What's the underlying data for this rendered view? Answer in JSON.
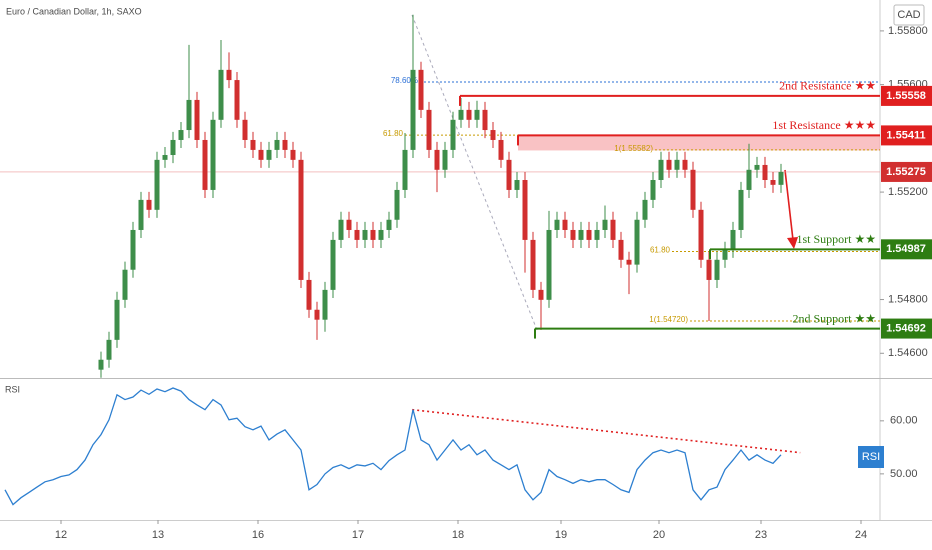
{
  "chart_data": [
    {
      "type": "candlestick",
      "title": "Euro / Canadian Dollar, 1h, SAXO",
      "currency": "CAD",
      "up_color": "#3e8e4a",
      "down_color": "#d12f2f",
      "open": [
        1.54539,
        1.54576,
        1.5465,
        1.54799,
        1.54911,
        1.55059,
        1.55171,
        1.55134,
        1.5532,
        1.55338,
        1.55394,
        1.55431,
        1.55543,
        1.55394,
        1.55208,
        1.55469,
        1.55655,
        1.55617,
        1.55469,
        1.55394,
        1.55357,
        1.5532,
        1.55357,
        1.55394,
        1.55357,
        1.5532,
        1.54873,
        1.54762,
        1.54725,
        1.54836,
        1.55022,
        1.55097,
        1.55059,
        1.55022,
        1.55059,
        1.55022,
        1.55059,
        1.55097,
        1.55208,
        1.55357,
        1.55655,
        1.55506,
        1.55357,
        1.55283,
        1.55357,
        1.55469,
        1.55506,
        1.55469,
        1.55506,
        1.55431,
        1.55394,
        1.5532,
        1.55208,
        1.55245,
        1.55022,
        1.54836,
        1.54799,
        1.55059,
        1.55097,
        1.55059,
        1.55022,
        1.55059,
        1.55022,
        1.55059,
        1.55097,
        1.55022,
        1.54948,
        1.5493,
        1.55097,
        1.55171,
        1.55245,
        1.5532,
        1.55283,
        1.5532,
        1.55283,
        1.55134,
        1.54948,
        1.54873,
        1.54948,
        1.54985,
        1.55059,
        1.55208,
        1.55283,
        1.55301,
        1.55245,
        1.55227
      ],
      "high": [
        1.54606,
        1.5468,
        1.54829,
        1.54941,
        1.55089,
        1.55201,
        1.55201,
        1.5535,
        1.55368,
        1.55424,
        1.55461,
        1.55748,
        1.55573,
        1.55424,
        1.55499,
        1.55766,
        1.5572,
        1.55647,
        1.55499,
        1.55424,
        1.55387,
        1.55387,
        1.55424,
        1.55424,
        1.55387,
        1.5535,
        1.54903,
        1.54792,
        1.54866,
        1.55052,
        1.55127,
        1.55127,
        1.55089,
        1.55089,
        1.55089,
        1.55089,
        1.55127,
        1.55238,
        1.5542,
        1.5586,
        1.55685,
        1.55536,
        1.55387,
        1.55387,
        1.55499,
        1.5555,
        1.55536,
        1.5554,
        1.55536,
        1.55461,
        1.55424,
        1.5535,
        1.55275,
        1.55275,
        1.55052,
        1.54866,
        1.5513,
        1.55127,
        1.55127,
        1.55089,
        1.55089,
        1.55089,
        1.55089,
        1.5515,
        1.55127,
        1.55052,
        1.54978,
        1.55127,
        1.55201,
        1.55275,
        1.5535,
        1.5535,
        1.5535,
        1.5535,
        1.55313,
        1.55164,
        1.54978,
        1.54978,
        1.55015,
        1.55089,
        1.55238,
        1.5538,
        1.55331,
        1.55331,
        1.55275,
        1.55305
      ],
      "low": [
        1.54509,
        1.54546,
        1.5462,
        1.54769,
        1.54881,
        1.55029,
        1.55104,
        1.55104,
        1.5529,
        1.55308,
        1.55364,
        1.55401,
        1.55364,
        1.55178,
        1.55178,
        1.55439,
        1.55587,
        1.55439,
        1.55364,
        1.55327,
        1.5529,
        1.5529,
        1.55327,
        1.55327,
        1.5529,
        1.54843,
        1.54732,
        1.5465,
        1.5468,
        1.54806,
        1.54992,
        1.55029,
        1.54992,
        1.54992,
        1.54992,
        1.54992,
        1.55029,
        1.55067,
        1.55178,
        1.55327,
        1.55476,
        1.55327,
        1.552,
        1.55253,
        1.55327,
        1.55439,
        1.55439,
        1.55439,
        1.55401,
        1.55364,
        1.5529,
        1.55178,
        1.55178,
        1.549,
        1.54806,
        1.54687,
        1.54769,
        1.55029,
        1.55029,
        1.54992,
        1.54992,
        1.54992,
        1.54992,
        1.55029,
        1.54992,
        1.54918,
        1.5482,
        1.549,
        1.55067,
        1.55141,
        1.55215,
        1.55253,
        1.55253,
        1.55253,
        1.55104,
        1.54918,
        1.5472,
        1.54843,
        1.54918,
        1.54955,
        1.55029,
        1.55178,
        1.55253,
        1.55215,
        1.55197,
        1.55197
      ],
      "close": [
        1.54576,
        1.5465,
        1.54799,
        1.54911,
        1.55059,
        1.55171,
        1.55134,
        1.5532,
        1.55338,
        1.55394,
        1.55431,
        1.55543,
        1.55394,
        1.55208,
        1.55469,
        1.55655,
        1.55617,
        1.55469,
        1.55394,
        1.55357,
        1.5532,
        1.55357,
        1.55394,
        1.55357,
        1.5532,
        1.54873,
        1.54762,
        1.54725,
        1.54836,
        1.55022,
        1.55097,
        1.55059,
        1.55022,
        1.55059,
        1.55022,
        1.55059,
        1.55097,
        1.55208,
        1.55357,
        1.55655,
        1.55506,
        1.55357,
        1.55283,
        1.55357,
        1.55469,
        1.55506,
        1.55469,
        1.55506,
        1.55431,
        1.55394,
        1.5532,
        1.55208,
        1.55245,
        1.55022,
        1.54836,
        1.54799,
        1.55059,
        1.55097,
        1.55059,
        1.55022,
        1.55059,
        1.55022,
        1.55059,
        1.55097,
        1.55022,
        1.54948,
        1.5493,
        1.55097,
        1.55171,
        1.55245,
        1.5532,
        1.55283,
        1.5532,
        1.55283,
        1.55134,
        1.54948,
        1.54873,
        1.54948,
        1.54985,
        1.55059,
        1.55208,
        1.55283,
        1.55301,
        1.55245,
        1.55227,
        1.55275
      ],
      "xlim": [
        -12.625,
        97.375
      ],
      "ylim": [
        1.54508,
        1.55915
      ],
      "yticks": [
        {
          "value": 1.558,
          "label": "1.55800"
        },
        {
          "value": 1.556,
          "label": "1.55600"
        },
        {
          "value": 1.552,
          "label": "1.55200"
        },
        {
          "value": 1.548,
          "label": "1.54800"
        },
        {
          "value": 1.546,
          "label": "1.54600"
        }
      ],
      "last_price": 1.55275,
      "resistance_zone": [
        1.55355,
        1.55411
      ],
      "levels": [
        {
          "label": "2nd Resistance ★★",
          "value": 1.55558,
          "color": "#e01f1f"
        },
        {
          "label": "1st Resistance ★★★",
          "value": 1.55411,
          "color": "#e01f1f"
        },
        {
          "label": "1st Support ★★",
          "value": 1.54987,
          "color": "#2e7d12"
        },
        {
          "label": "2nd Support ★★",
          "value": 1.54692,
          "color": "#2e7d12"
        }
      ],
      "fibs": [
        {
          "label": "78.60%",
          "value": 1.5561,
          "color": "#2a6fd6"
        },
        {
          "label": "61.80",
          "value": 1.55412,
          "color": "#c79a00"
        },
        {
          "label": "1(1.55582)",
          "value": 1.55357,
          "color": "#c79a00"
        },
        {
          "label": "61.80",
          "value": 1.54979,
          "color": "#c79a00"
        },
        {
          "label": "1(1.54720)",
          "value": 1.5472,
          "color": "#c79a00"
        }
      ]
    },
    {
      "type": "line",
      "title": "RSI",
      "color": "#2d7fd0",
      "values": [
        47.0,
        44.2,
        45.5,
        46.5,
        47.5,
        48.5,
        48.9,
        49.5,
        49.8,
        50.8,
        52.6,
        55.5,
        57.4,
        60.2,
        64.9,
        64.0,
        64.5,
        65.8,
        65.0,
        66.0,
        65.5,
        66.2,
        65.6,
        64.0,
        63.0,
        62.1,
        64.0,
        63.0,
        60.2,
        60.5,
        58.9,
        58.3,
        59.0,
        56.4,
        57.5,
        58.3,
        56.4,
        54.5,
        47.0,
        48.0,
        50.0,
        51.2,
        51.7,
        51.0,
        51.7,
        51.5,
        52.0,
        50.8,
        52.5,
        53.6,
        54.5,
        62.1,
        56.4,
        55.5,
        52.6,
        54.5,
        56.4,
        54.5,
        55.5,
        53.6,
        54.5,
        52.6,
        51.7,
        50.8,
        51.7,
        47.0,
        45.1,
        46.5,
        50.8,
        49.5,
        48.9,
        48.2,
        48.9,
        48.5,
        48.9,
        48.9,
        48.0,
        47.0,
        46.5,
        50.8,
        52.6,
        54.0,
        54.5,
        54.0,
        54.5,
        54.0,
        47.0,
        45.1,
        47.0,
        47.5,
        50.8,
        52.6,
        54.5,
        52.6,
        53.6,
        52.6,
        52.0,
        53.6
      ],
      "xlim": [
        -0.625,
        109.375
      ],
      "ylim": [
        41.3,
        67.7
      ],
      "yticks": [
        {
          "value": 60,
          "label": "60.00"
        },
        {
          "value": 50,
          "label": "50.00"
        }
      ],
      "xticks": [
        {
          "value": 7,
          "label": "12"
        },
        {
          "value": 19.125,
          "label": "13"
        },
        {
          "value": 31.625,
          "label": "16"
        },
        {
          "value": 44.125,
          "label": "17"
        },
        {
          "value": 56.625,
          "label": "18"
        },
        {
          "value": 69.5,
          "label": "19"
        },
        {
          "value": 81.75,
          "label": "20"
        },
        {
          "value": 94.5,
          "label": "23"
        },
        {
          "value": 107,
          "label": "24"
        }
      ],
      "trendline": {
        "x": [
          50.9,
          99.4
        ],
        "values": [
          62.1,
          54.0
        ],
        "color": "#e02020"
      }
    }
  ]
}
